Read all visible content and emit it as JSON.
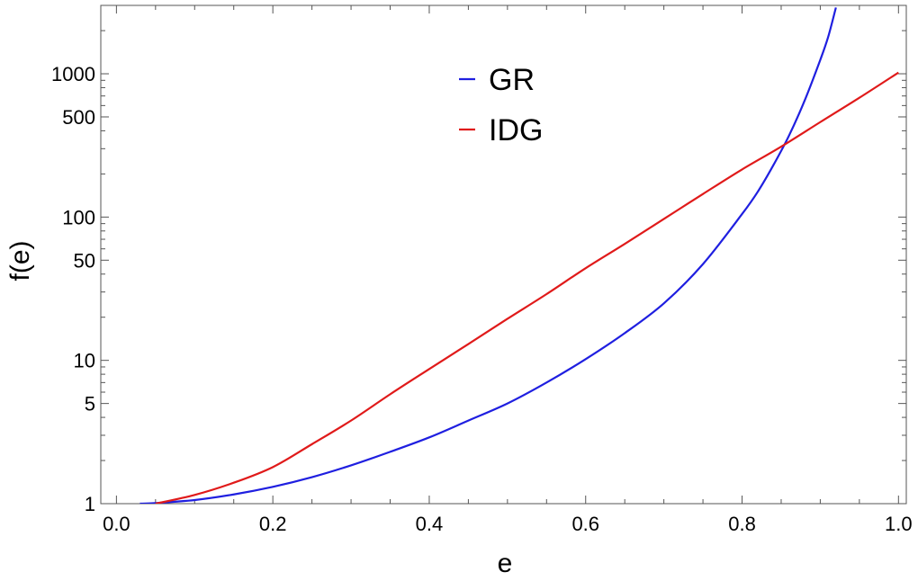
{
  "chart_data": {
    "type": "line",
    "xlabel": "e",
    "ylabel": "f(e)",
    "x_scale": "linear",
    "y_scale": "log",
    "xlim": [
      -0.02,
      1.01
    ],
    "ylim": [
      1,
      3000
    ],
    "x_ticks": [
      {
        "value": 0.0,
        "label": "0.0"
      },
      {
        "value": 0.2,
        "label": "0.2"
      },
      {
        "value": 0.4,
        "label": "0.4"
      },
      {
        "value": 0.6,
        "label": "0.6"
      },
      {
        "value": 0.8,
        "label": "0.8"
      },
      {
        "value": 1.0,
        "label": "1.0"
      }
    ],
    "y_ticks": [
      {
        "value": 1,
        "label": "1"
      },
      {
        "value": 5,
        "label": "5"
      },
      {
        "value": 10,
        "label": "10"
      },
      {
        "value": 50,
        "label": "50"
      },
      {
        "value": 100,
        "label": "100"
      },
      {
        "value": 500,
        "label": "500"
      },
      {
        "value": 1000,
        "label": "1000"
      }
    ],
    "grid": false,
    "legend_position": "top-center",
    "series": [
      {
        "name": "GR",
        "color": "#1f1fe0",
        "x": [
          0.03,
          0.05,
          0.1,
          0.15,
          0.2,
          0.25,
          0.3,
          0.35,
          0.4,
          0.45,
          0.5,
          0.55,
          0.6,
          0.65,
          0.7,
          0.75,
          0.8,
          0.82,
          0.84,
          0.86,
          0.88,
          0.9,
          0.91,
          0.92
        ],
        "y": [
          1.0,
          1.01,
          1.06,
          1.16,
          1.31,
          1.53,
          1.85,
          2.3,
          2.9,
          3.8,
          5.0,
          7.0,
          10.2,
          15.5,
          25,
          47,
          105,
          150,
          230,
          370,
          650,
          1250,
          1800,
          2900
        ]
      },
      {
        "name": "IDG",
        "color": "#e01a1a",
        "x": [
          0.05,
          0.1,
          0.15,
          0.2,
          0.25,
          0.3,
          0.35,
          0.4,
          0.45,
          0.5,
          0.55,
          0.6,
          0.65,
          0.7,
          0.75,
          0.8,
          0.85,
          0.9,
          0.95,
          1.0
        ],
        "y": [
          1.0,
          1.15,
          1.4,
          1.8,
          2.6,
          3.8,
          5.8,
          8.7,
          13.0,
          19.5,
          29,
          44,
          65,
          97,
          145,
          215,
          310,
          460,
          680,
          1020
        ]
      }
    ]
  }
}
